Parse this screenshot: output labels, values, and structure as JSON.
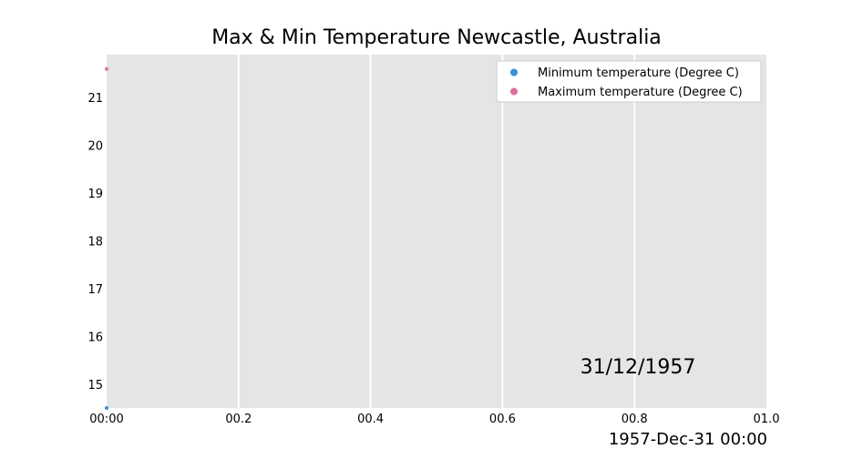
{
  "chart_data": {
    "type": "scatter",
    "title": "Max & Min Temperature Newcastle, Australia",
    "xlabel": "",
    "ylabel": "",
    "x_tick_labels": [
      "00:00",
      "00.2",
      "00.4",
      "00.6",
      "00.8",
      "01.0"
    ],
    "x_ticks": [
      0,
      0.2,
      0.4,
      0.6,
      0.8,
      1.0
    ],
    "xlim": [
      0,
      1.0
    ],
    "y_ticks": [
      15,
      16,
      17,
      18,
      19,
      20,
      21
    ],
    "y_tick_labels": [
      "15",
      "16",
      "17",
      "18",
      "19",
      "20",
      "21"
    ],
    "ylim": [
      14.5,
      21.9
    ],
    "grid": "x-only",
    "legend_position": "top-right",
    "series": [
      {
        "name": "Minimum temperature (Degree C)",
        "color": "#3a8fd9",
        "points": [
          [
            0,
            14.5
          ]
        ]
      },
      {
        "name": "Maximum temperature (Degree C)",
        "color": "#e0709e",
        "points": [
          [
            0,
            21.6
          ]
        ]
      }
    ],
    "annotation": "31/12/1957",
    "footer": "1957-Dec-31 00:00"
  }
}
